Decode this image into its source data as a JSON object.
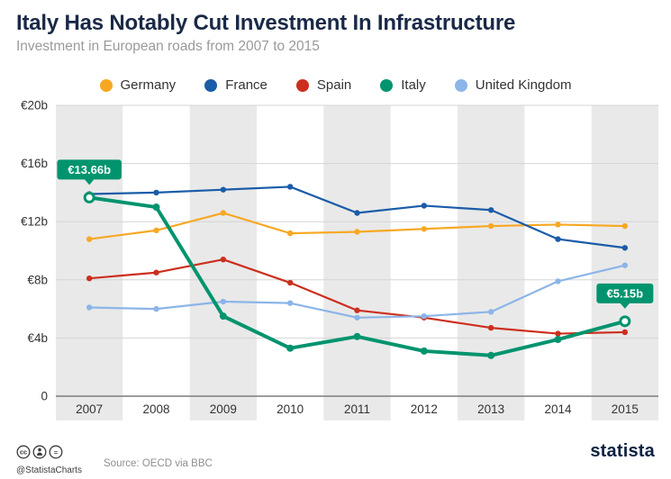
{
  "header": {
    "title": "Italy Has Notably Cut Investment In Infrastructure",
    "subtitle": "Investment in European roads from 2007 to 2015"
  },
  "chart_data": {
    "type": "line",
    "x": [
      2007,
      2008,
      2009,
      2010,
      2011,
      2012,
      2013,
      2014,
      2015
    ],
    "ylim": [
      0,
      20
    ],
    "ytick_step": 4,
    "ytick_labels": [
      "0",
      "€4b",
      "€8b",
      "€12b",
      "€16b",
      "€20b"
    ],
    "unit": "€ billion",
    "grid": "horizontal",
    "legend_position": "top",
    "series": [
      {
        "name": "Germany",
        "color": "#f7a823",
        "values": [
          10.8,
          11.4,
          12.6,
          11.2,
          11.3,
          11.5,
          11.7,
          11.8,
          11.7
        ]
      },
      {
        "name": "France",
        "color": "#1a5ca8",
        "values": [
          13.9,
          14.0,
          14.2,
          14.4,
          12.6,
          13.1,
          12.8,
          10.8,
          10.2
        ]
      },
      {
        "name": "Spain",
        "color": "#cc2f1e",
        "values": [
          8.1,
          8.5,
          9.4,
          7.8,
          5.9,
          5.4,
          4.7,
          4.3,
          4.4
        ]
      },
      {
        "name": "Italy",
        "color": "#00946e",
        "values": [
          13.66,
          13.0,
          5.5,
          3.3,
          4.1,
          3.1,
          2.8,
          3.9,
          5.15
        ],
        "emphasis": true
      },
      {
        "name": "United Kingdom",
        "color": "#8cb5e8",
        "values": [
          6.1,
          6.0,
          6.5,
          6.4,
          5.4,
          5.5,
          5.8,
          7.9,
          9.0
        ]
      }
    ],
    "annotations": [
      {
        "text": "€13.66b",
        "x": 2007,
        "y": 13.66,
        "series": "Italy",
        "color": "#00946e"
      },
      {
        "text": "€5.15b",
        "x": 2015,
        "y": 5.15,
        "series": "Italy",
        "color": "#00946e"
      }
    ]
  },
  "footer": {
    "handle": "@StatistaCharts",
    "source": "Source: OECD via BBC",
    "brand": "statista",
    "cc_glyphs": [
      "cc",
      "person",
      "="
    ]
  }
}
